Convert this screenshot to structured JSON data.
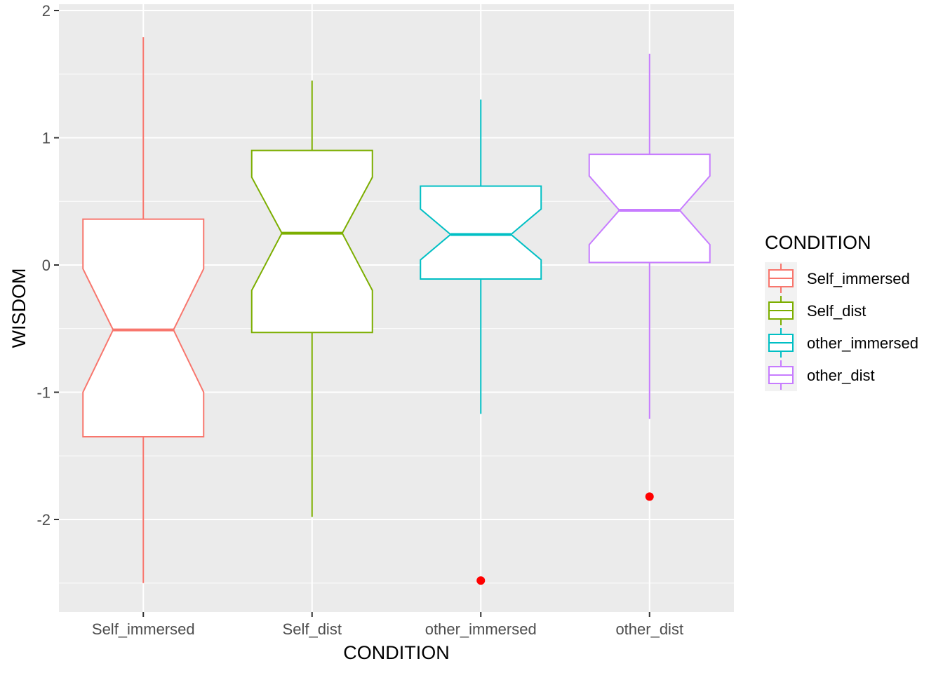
{
  "chart_data": {
    "type": "boxplot",
    "notched": true,
    "xlabel": "CONDITION",
    "ylabel": "WISDOM",
    "ylim": [
      -2.7,
      2.0
    ],
    "yticks": [
      2,
      1,
      0,
      -1,
      -2
    ],
    "ytick_labels": [
      "2",
      "1",
      "0",
      "-1",
      "-2"
    ],
    "categories": [
      "Self_immersed",
      "Self_dist",
      "other_immersed",
      "other_dist"
    ],
    "series": [
      {
        "name": "Self_immersed",
        "color": "#F8766D",
        "whisker_low": -2.5,
        "q1": -1.35,
        "median": -0.51,
        "q3": 0.36,
        "whisker_high": 1.79,
        "notch_low": -1.0,
        "notch_high": -0.03,
        "outliers": []
      },
      {
        "name": "Self_dist",
        "color": "#7CAE00",
        "whisker_low": -1.98,
        "q1": -0.53,
        "median": 0.25,
        "q3": 0.9,
        "whisker_high": 1.45,
        "notch_low": -0.2,
        "notch_high": 0.69,
        "outliers": []
      },
      {
        "name": "other_immersed",
        "color": "#00BFC4",
        "whisker_low": -1.17,
        "q1": -0.11,
        "median": 0.24,
        "q3": 0.62,
        "whisker_high": 1.3,
        "notch_low": 0.04,
        "notch_high": 0.44,
        "outliers": [
          -2.48
        ]
      },
      {
        "name": "other_dist",
        "color": "#C77CFF",
        "whisker_low": -1.21,
        "q1": 0.02,
        "median": 0.43,
        "q3": 0.87,
        "whisker_high": 1.66,
        "notch_low": 0.16,
        "notch_high": 0.7,
        "outliers": [
          -1.82
        ]
      }
    ],
    "outlier_color": "#FF0000",
    "legend": {
      "title": "CONDITION",
      "position": "right"
    },
    "grid": true
  }
}
